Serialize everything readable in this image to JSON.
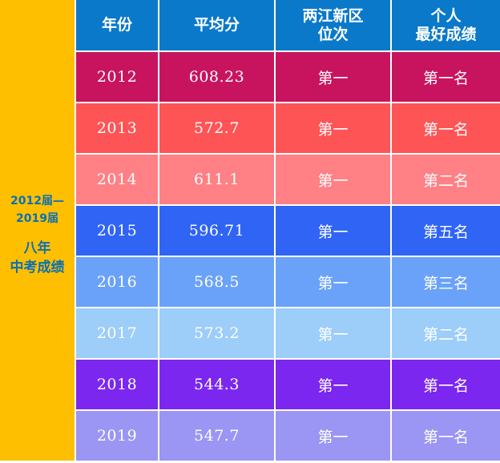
{
  "side_label": {
    "range_line1": "2012届—",
    "range_line2": "2019届",
    "title_line1": "八年",
    "title_line2": "中考成绩"
  },
  "header": {
    "year": "年份",
    "average": "平均分",
    "district_line1": "两江新区",
    "district_line2": "位次",
    "personal_line1": "个人",
    "personal_line2": "最好成绩"
  },
  "colors": {
    "header": "#0a79c9",
    "side": "#fdbf00",
    "side_text": "#0b6fb5"
  },
  "rows": [
    {
      "year": "2012",
      "average": "608.23",
      "district_rank": "第一",
      "best": "第一名",
      "color": "#c8145e"
    },
    {
      "year": "2013",
      "average": "572.7",
      "district_rank": "第一",
      "best": "第一名",
      "color": "#fe5456"
    },
    {
      "year": "2014",
      "average": "611.1",
      "district_rank": "第一",
      "best": "第二名",
      "color": "#ff8085"
    },
    {
      "year": "2015",
      "average": "596.71",
      "district_rank": "第一",
      "best": "第五名",
      "color": "#2f64f5"
    },
    {
      "year": "2016",
      "average": "568.5",
      "district_rank": "第一",
      "best": "第三名",
      "color": "#6aa2f9"
    },
    {
      "year": "2017",
      "average": "573.2",
      "district_rank": "第一",
      "best": "第二名",
      "color": "#9dcdf9"
    },
    {
      "year": "2018",
      "average": "544.3",
      "district_rank": "第一",
      "best": "第一名",
      "color": "#7b27f0"
    },
    {
      "year": "2019",
      "average": "547.7",
      "district_rank": "第一",
      "best": "第一名",
      "color": "#9b95f4"
    }
  ]
}
